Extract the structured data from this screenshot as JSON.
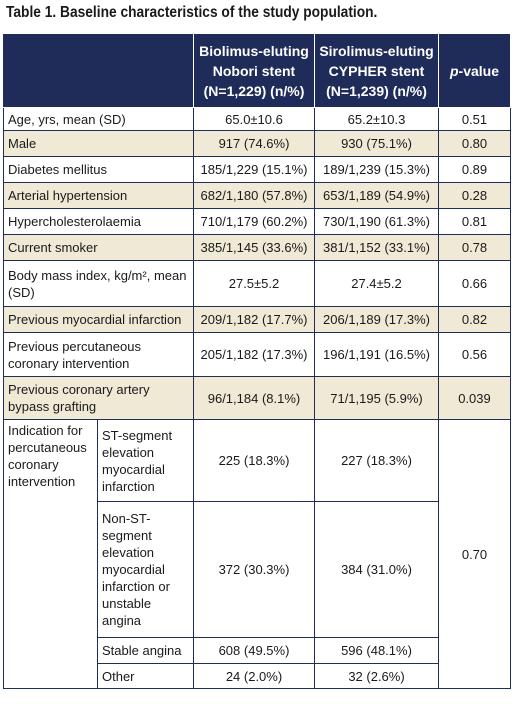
{
  "caption": "Table 1. Baseline characteristics of the study population.",
  "header": {
    "col1_line1": "Biolimus-eluting",
    "col1_line2": "Nobori stent",
    "col1_line3": "(N=1,229) (n/%)",
    "col2_line1": "Sirolimus-eluting",
    "col2_line2": "CYPHER stent",
    "col2_line3": "(N=1,239) (n/%)",
    "pvalue_italic": "p",
    "pvalue_rest": "-value"
  },
  "rows": [
    {
      "label": "Age, yrs, mean (SD)",
      "nobori": "65.0±10.6",
      "cypher": "65.2±10.3",
      "p": "0.51"
    },
    {
      "label": "Male",
      "nobori": "917 (74.6%)",
      "cypher": "930 (75.1%)",
      "p": "0.80"
    },
    {
      "label": "Diabetes mellitus",
      "nobori": "185/1,229 (15.1%)",
      "cypher": "189/1,239 (15.3%)",
      "p": "0.89"
    },
    {
      "label": "Arterial hypertension",
      "nobori": "682/1,180 (57.8%)",
      "cypher": "653/1,189 (54.9%)",
      "p": "0.28"
    },
    {
      "label": "Hypercholesterolaemia",
      "nobori": "710/1,179 (60.2%)",
      "cypher": "730/1,190 (61.3%)",
      "p": "0.81"
    },
    {
      "label": "Current smoker",
      "nobori": "385/1,145 (33.6%)",
      "cypher": "381/1,152 (33.1%)",
      "p": "0.78"
    },
    {
      "label": "Body mass index, kg/m², mean (SD)",
      "nobori": "27.5±5.2",
      "cypher": "27.4±5.2",
      "p": "0.66"
    },
    {
      "label": "Previous myocardial infarction",
      "nobori": "209/1,182 (17.7%)",
      "cypher": "206/1,189 (17.3%)",
      "p": "0.82"
    },
    {
      "label": "Previous percutaneous coronary intervention",
      "nobori": "205/1,182 (17.3%)",
      "cypher": "196/1,191 (16.5%)",
      "p": "0.56"
    },
    {
      "label": "Previous coronary artery bypass grafting",
      "nobori": "96/1,184 (8.1%)",
      "cypher": "71/1,195 (5.9%)",
      "p": "0.039"
    }
  ],
  "indication": {
    "label": "Indication for percutaneous coronary intervention",
    "p": "0.70",
    "subrows": [
      {
        "label": "ST-segment elevation myocardial infarction",
        "nobori": "225 (18.3%)",
        "cypher": "227 (18.3%)"
      },
      {
        "label": "Non-ST-segment elevation myocardial infarction or unstable angina",
        "nobori": "372 (30.3%)",
        "cypher": "384 (31.0%)"
      },
      {
        "label": "Stable angina",
        "nobori": "608 (49.5%)",
        "cypher": "596 (48.1%)"
      },
      {
        "label": "Other",
        "nobori": "24 (2.0%)",
        "cypher": "32 (2.6%)"
      }
    ]
  },
  "colors": {
    "header_bg": "#1f2c5a",
    "stripe_bg": "#efe9d5",
    "border": "#1f2e56"
  }
}
